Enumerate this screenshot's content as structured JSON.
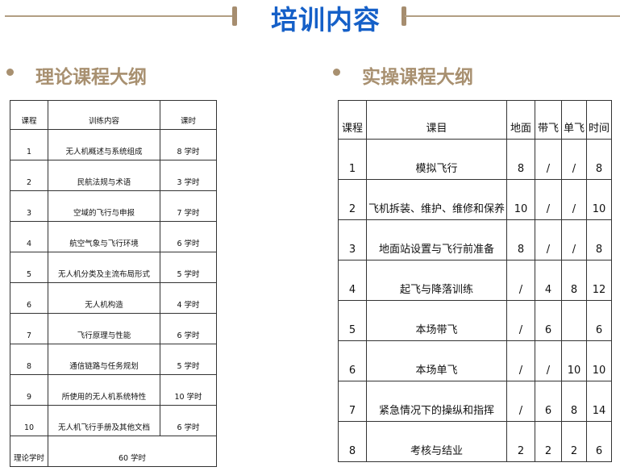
{
  "header": {
    "title": "培训内容",
    "accent_color": "#1560c8",
    "line_color": "#b29e83"
  },
  "theory": {
    "heading": "理论课程大纲",
    "columns": [
      "课程",
      "训练内容",
      "课时"
    ],
    "rows": [
      [
        "1",
        "无人机概述与系统组成",
        "8 学时"
      ],
      [
        "2",
        "民航法规与术语",
        "3 学时"
      ],
      [
        "3",
        "空域的飞行与申报",
        "7 学时"
      ],
      [
        "4",
        "航空气象与飞行环境",
        "6 学时"
      ],
      [
        "5",
        "无人机分类及主流布局形式",
        "5 学时"
      ],
      [
        "6",
        "无人机构造",
        "4 学时"
      ],
      [
        "7",
        "飞行原理与性能",
        "6 学时"
      ],
      [
        "8",
        "通信链路与任务规划",
        "5 学时"
      ],
      [
        "9",
        "所使用的无人机系统特性",
        "10 学时"
      ],
      [
        "10",
        "无人机飞行手册及其他文档",
        "6 学时"
      ]
    ],
    "total_label": "理论学时",
    "total_value": "60 学时"
  },
  "practice": {
    "heading": "实操课程大纲",
    "columns": [
      "课程",
      "课目",
      "地面",
      "带飞",
      "单飞",
      "时间"
    ],
    "rows": [
      [
        "1",
        "模拟飞行",
        "8",
        "/",
        "/",
        "8"
      ],
      [
        "2",
        "飞机拆装、维护、维修和保养",
        "10",
        "/",
        "/",
        "10"
      ],
      [
        "3",
        "地面站设置与飞行前准备",
        "8",
        "/",
        "/",
        "8"
      ],
      [
        "4",
        "起飞与降落训练",
        "/",
        "4",
        "8",
        "12"
      ],
      [
        "5",
        "本场带飞",
        "/",
        "6",
        "",
        "6"
      ],
      [
        "6",
        "本场单飞",
        "/",
        "/",
        "10",
        "10"
      ],
      [
        "7",
        "紧急情况下的操纵和指挥",
        "/",
        "6",
        "8",
        "14"
      ],
      [
        "8",
        "考核与结业",
        "2",
        "2",
        "2",
        "6"
      ]
    ]
  }
}
